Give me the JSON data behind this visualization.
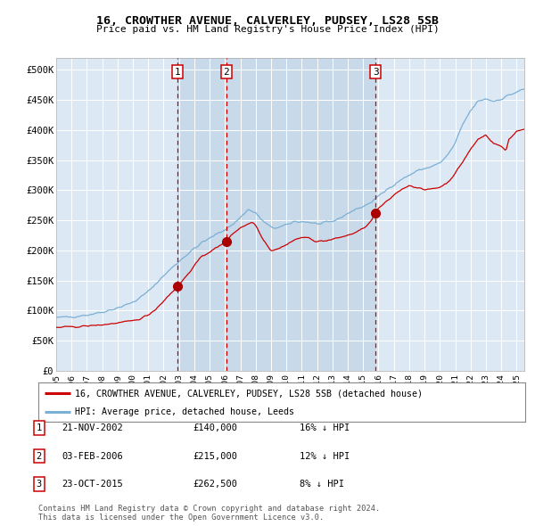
{
  "title1": "16, CROWTHER AVENUE, CALVERLEY, PUDSEY, LS28 5SB",
  "title2": "Price paid vs. HM Land Registry's House Price Index (HPI)",
  "background_color": "#ffffff",
  "plot_bg_color": "#dce9f5",
  "grid_color": "#ffffff",
  "red_line_color": "#cc0000",
  "blue_line_color": "#7bafd4",
  "sale_marker_color": "#aa0000",
  "dashed_line_color": "#cc0000",
  "sale_region_color": "#c8daea",
  "ylim": [
    0,
    520000
  ],
  "yticks": [
    0,
    50000,
    100000,
    150000,
    200000,
    250000,
    300000,
    350000,
    400000,
    450000,
    500000
  ],
  "ytick_labels": [
    "£0",
    "£50K",
    "£100K",
    "£150K",
    "£200K",
    "£250K",
    "£300K",
    "£350K",
    "£400K",
    "£450K",
    "£500K"
  ],
  "xlim_start": 1995.0,
  "xlim_end": 2025.5,
  "xticks": [
    1995,
    1996,
    1997,
    1998,
    1999,
    2000,
    2001,
    2002,
    2003,
    2004,
    2005,
    2006,
    2007,
    2008,
    2009,
    2010,
    2011,
    2012,
    2013,
    2014,
    2015,
    2016,
    2017,
    2018,
    2019,
    2020,
    2021,
    2022,
    2023,
    2024,
    2025
  ],
  "sales": [
    {
      "date": 2002.896,
      "price": 140000,
      "label": "1"
    },
    {
      "date": 2006.088,
      "price": 215000,
      "label": "2"
    },
    {
      "date": 2015.811,
      "price": 262500,
      "label": "3"
    }
  ],
  "legend_entries": [
    {
      "label": "16, CROWTHER AVENUE, CALVERLEY, PUDSEY, LS28 5SB (detached house)",
      "color": "#cc0000"
    },
    {
      "label": "HPI: Average price, detached house, Leeds",
      "color": "#7bafd4"
    }
  ],
  "table_entries": [
    {
      "num": "1",
      "date": "21-NOV-2002",
      "price": "£140,000",
      "hpi": "16% ↓ HPI"
    },
    {
      "num": "2",
      "date": "03-FEB-2006",
      "price": "£215,000",
      "hpi": "12% ↓ HPI"
    },
    {
      "num": "3",
      "date": "23-OCT-2015",
      "price": "£262,500",
      "hpi": "8% ↓ HPI"
    }
  ],
  "footnote": "Contains HM Land Registry data © Crown copyright and database right 2024.\nThis data is licensed under the Open Government Licence v3.0."
}
